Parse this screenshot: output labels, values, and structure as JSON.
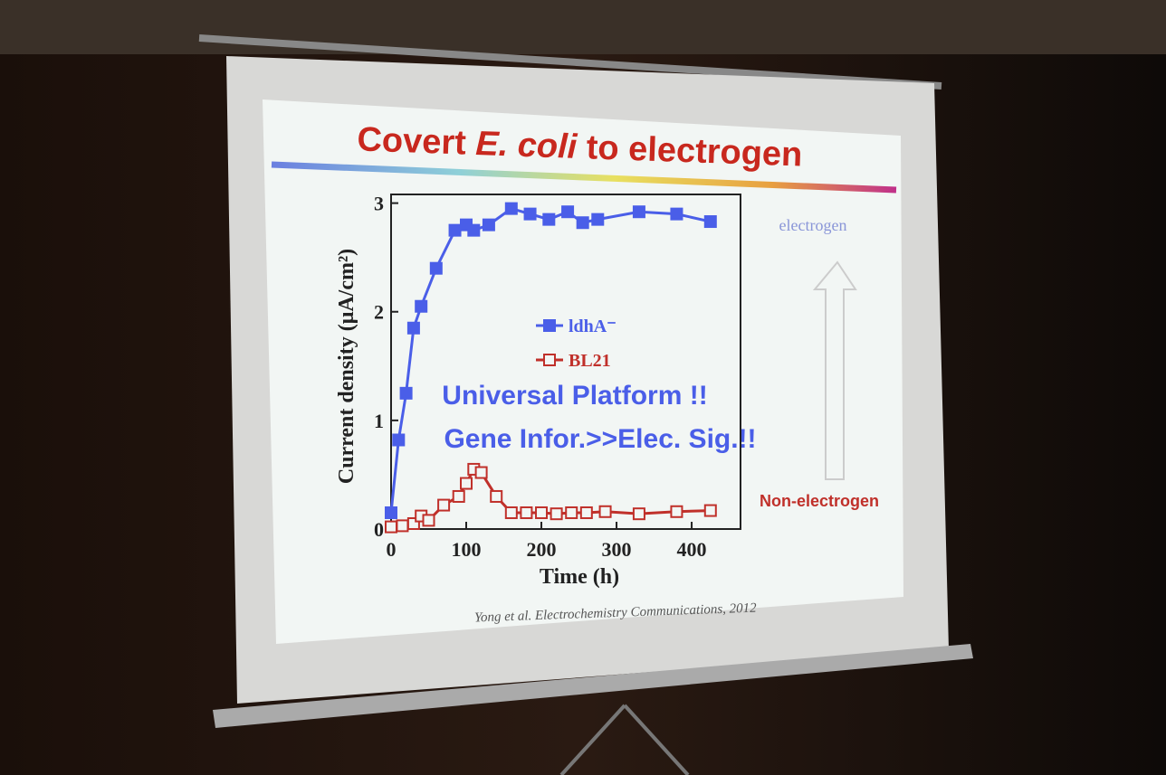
{
  "chart_data": {
    "type": "line",
    "title_start": "Covert",
    "title_italic": "E. coli",
    "title_end": "to electrogen",
    "x_label": "Time (h)",
    "y_label": "Current density (μA/cm²)",
    "xlim": [
      0,
      465
    ],
    "ylim": [
      0,
      3.08
    ],
    "xticks": [
      0,
      100,
      200,
      300,
      400
    ],
    "yticks": [
      0,
      1,
      2,
      3
    ],
    "series": [
      {
        "name": "ldhA⁻",
        "color": "#4a5ee8",
        "marker": "filled-square",
        "x": [
          0,
          10,
          20,
          30,
          40,
          60,
          85,
          100,
          110,
          130,
          160,
          185,
          210,
          235,
          255,
          275,
          330,
          380,
          425
        ],
        "values": [
          0.15,
          0.82,
          1.25,
          1.85,
          2.05,
          2.4,
          2.75,
          2.8,
          2.75,
          2.8,
          2.95,
          2.9,
          2.85,
          2.92,
          2.82,
          2.85,
          2.92,
          2.9,
          2.83
        ]
      },
      {
        "name": "BL21",
        "color": "#c0302a",
        "marker": "hollow-square",
        "x": [
          0,
          15,
          30,
          40,
          50,
          70,
          90,
          100,
          110,
          120,
          140,
          160,
          180,
          200,
          220,
          240,
          260,
          285,
          330,
          380,
          425
        ],
        "values": [
          0.02,
          0.03,
          0.05,
          0.12,
          0.08,
          0.22,
          0.3,
          0.42,
          0.55,
          0.52,
          0.3,
          0.15,
          0.15,
          0.15,
          0.14,
          0.15,
          0.15,
          0.16,
          0.14,
          0.16,
          0.17
        ]
      }
    ],
    "annotations": {
      "electrogen": "electrogen",
      "non_electrogen": "Non-electrogen",
      "platform": "Universal Platform !!",
      "gene": "Gene Infor.>>Elec. Sig.!!"
    },
    "citation": "Yong et al. Electrochemistry Communications, 2012"
  }
}
